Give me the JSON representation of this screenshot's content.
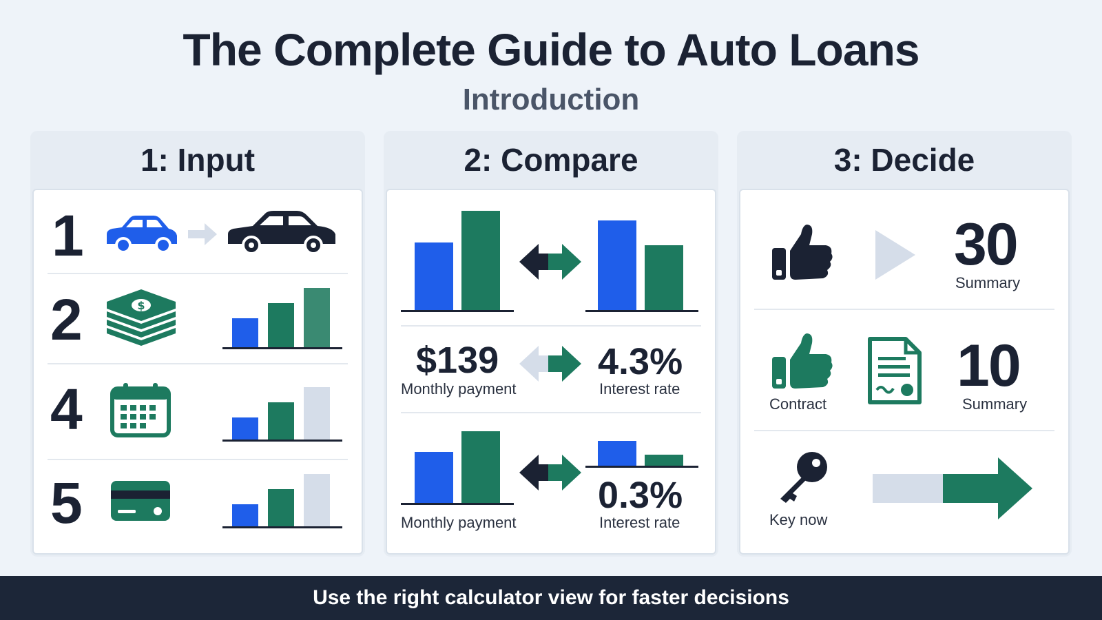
{
  "header": {
    "title": "The Complete Guide to Auto Loans",
    "subtitle": "Introduction"
  },
  "columns": [
    {
      "heading": "1: Input",
      "rows": [
        {
          "number": "1",
          "icon": "car-icon",
          "icon2": "sedan-icon"
        },
        {
          "number": "2",
          "icon": "cash-stack-icon"
        },
        {
          "number": "4",
          "icon": "calendar-icon"
        },
        {
          "number": "5",
          "icon": "credit-card-icon"
        }
      ]
    },
    {
      "heading": "2: Compare",
      "rows": [
        {
          "icon": "swap-arrows-icon"
        },
        {
          "left_value": "$139",
          "left_label": "Monthly payment",
          "right_value": "4.3%",
          "right_label": "Interest rate",
          "icon": "swap-arrows-icon"
        },
        {
          "left_label": "Monthly payment",
          "right_value": "0.3%",
          "right_label": "Interest rate",
          "icon": "swap-arrows-icon"
        }
      ]
    },
    {
      "heading": "3: Decide",
      "rows": [
        {
          "icon": "thumbs-up-icon",
          "value": "30",
          "label": "Summary"
        },
        {
          "icon": "thumbs-up-icon",
          "icon_label": "Contract",
          "icon2": "contract-document-icon",
          "value": "10",
          "label": "Summary"
        },
        {
          "icon": "key-icon",
          "icon_label": "Key now",
          "icon2": "arrow-right-icon"
        }
      ]
    }
  ],
  "footer": {
    "text": "Use the right calculator view for faster decisions"
  },
  "colors": {
    "blue": "#1f5eea",
    "green": "#1d7a5f",
    "navy": "#1b2233",
    "light": "#d5dde9"
  }
}
